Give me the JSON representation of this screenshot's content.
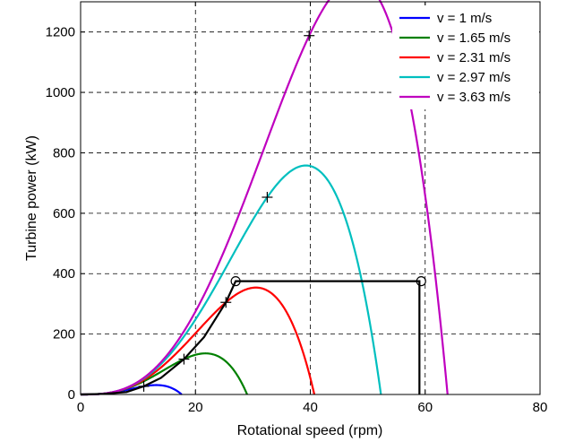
{
  "chart_data": {
    "type": "line",
    "xlabel": "Rotational speed (rpm)",
    "ylabel": "Turbine power (kW)",
    "xlim": [
      0,
      80
    ],
    "ylim": [
      0,
      1300
    ],
    "xticks": [
      0,
      20,
      40,
      60,
      80
    ],
    "yticks": [
      0,
      200,
      400,
      600,
      800,
      1000,
      1200
    ],
    "grid": true,
    "legend_position": "top-right",
    "series": [
      {
        "name": "v = 1 m/s",
        "color": "#0000ff",
        "peak": [
          11,
          27
        ],
        "zero": 17.6
      },
      {
        "name": "v = 1.65 m/s",
        "color": "#008000",
        "peak": [
          18,
          117
        ],
        "zero": 29
      },
      {
        "name": "v = 2.31 m/s",
        "color": "#ff0000",
        "peak": [
          25.3,
          305
        ],
        "zero": 40.7
      },
      {
        "name": "v = 2.97 m/s",
        "color": "#00bfbf",
        "peak": [
          32.5,
          653
        ],
        "zero": 52.3
      },
      {
        "name": "v = 3.63 m/s",
        "color": "#bf00bf",
        "peak": [
          39.8,
          1188
        ],
        "zero": 63.9
      }
    ],
    "control_curve": {
      "color": "#000000",
      "x": [
        0,
        4,
        8,
        11,
        14,
        18,
        21.5,
        25.3,
        27,
        27,
        59,
        59,
        59
      ],
      "y": [
        0,
        2,
        8,
        27,
        55,
        117,
        190,
        305,
        375,
        375,
        375,
        375,
        0
      ]
    },
    "mpp_markers": [
      [
        11,
        27
      ],
      [
        18,
        117
      ],
      [
        25.3,
        305
      ],
      [
        32.5,
        653
      ],
      [
        39.8,
        1188
      ]
    ],
    "circle_markers": [
      [
        27,
        375
      ],
      [
        59.3,
        375
      ]
    ]
  }
}
